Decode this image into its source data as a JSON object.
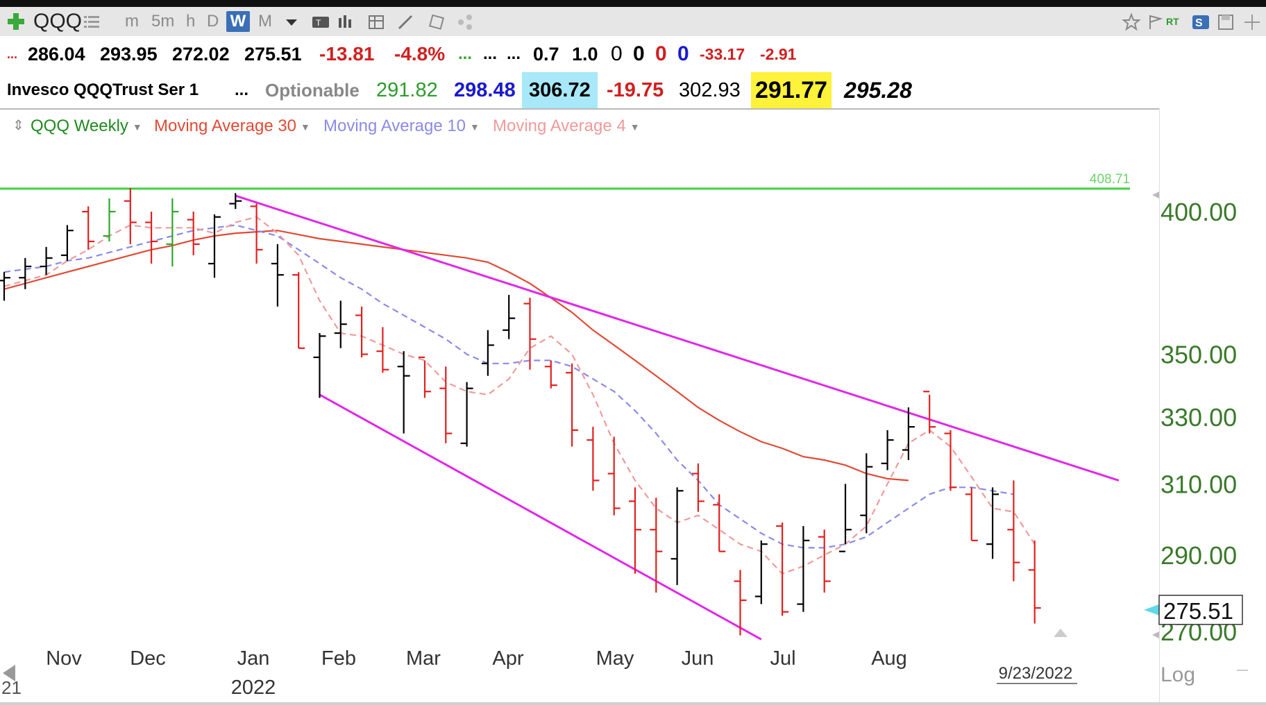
{
  "toolbar": {
    "symbol": "QQQ",
    "intervals": [
      "m",
      "5m",
      "h",
      "D",
      "W",
      "M"
    ],
    "active_interval": "W",
    "rt_label": "RT",
    "icons": [
      "add-symbol-icon",
      "list-icon",
      "dropdown-icon",
      "text-tool-icon",
      "bar-style-icon",
      "indicator-icon",
      "draw-icon",
      "drawing-tools-icon",
      "share-icon",
      "star-icon",
      "flag-icon",
      "s-icon",
      "save-icon",
      "crosshair-icon"
    ]
  },
  "quotes_row1": {
    "dots_left": "...",
    "open": "286.04",
    "high": "293.95",
    "low": "272.02",
    "last": "275.51",
    "change": "-13.81",
    "change_pct": "-4.8%",
    "green_dots": "...",
    "dots_a": "...",
    "dots_b": "...",
    "v1": "0.7",
    "v2": "1.0",
    "z1": "0",
    "z2": "0",
    "z3": "0",
    "z4": "0",
    "red1": "-33.17",
    "red2": "-2.91"
  },
  "quotes_row2": {
    "name": "Invesco QQQTrust Ser 1",
    "dots": "...",
    "optionable": "Optionable",
    "p1": "291.82",
    "p2": "298.48",
    "p3": "306.72",
    "p4": "-19.75",
    "p5": "302.93",
    "p6": "291.77",
    "p7": "295.28"
  },
  "legend": {
    "main": "QQQ Weekly",
    "ma30": "Moving Average 30",
    "ma10": "Moving Average 10",
    "ma4": "Moving Average 4"
  },
  "colors": {
    "up": "#000000",
    "down": "#e0201e",
    "green_bar": "#2ea52e",
    "ma30": "#e04a35",
    "ma10": "#8a8ae8",
    "ma4": "#f09a9a",
    "trendline": "#e028e8",
    "hline": "#3ed03e",
    "axis_text": "#3a7a2a",
    "legend_main": "#1f8a1f"
  },
  "chart_data": {
    "type": "ohlc",
    "x_labels": [
      "Nov",
      "Dec",
      "Jan",
      "Feb",
      "Mar",
      "Apr",
      "May",
      "Jun",
      "Jul",
      "Aug"
    ],
    "year_label": "2022",
    "corner_label": "21",
    "date_label": "9/23/2022",
    "scale_label": "Log",
    "y_ticks": [
      "400.00",
      "350.00",
      "330.00",
      "310.00",
      "290.00",
      "270.00"
    ],
    "last_price_label": "275.51",
    "hline_label": "408.71",
    "hline_value": 408.71,
    "weeks": [
      {
        "o": 375,
        "h": 378,
        "l": 368,
        "c": 376,
        "d": 0
      },
      {
        "o": 376,
        "h": 383,
        "l": 372,
        "c": 380,
        "d": 0
      },
      {
        "o": 380,
        "h": 387,
        "l": 377,
        "c": 383,
        "d": 0
      },
      {
        "o": 384,
        "h": 395,
        "l": 382,
        "c": 393,
        "d": 0
      },
      {
        "o": 400,
        "h": 402,
        "l": 386,
        "c": 389,
        "d": 1
      },
      {
        "o": 391,
        "h": 405,
        "l": 389,
        "c": 400,
        "d": 2
      },
      {
        "o": 404,
        "h": 409,
        "l": 388,
        "c": 396,
        "d": 1
      },
      {
        "o": 396,
        "h": 400,
        "l": 381,
        "c": 389,
        "d": 1
      },
      {
        "o": 388,
        "h": 405,
        "l": 380,
        "c": 400,
        "d": 2
      },
      {
        "o": 397,
        "h": 400,
        "l": 384,
        "c": 388,
        "d": 1
      },
      {
        "o": 381,
        "h": 399,
        "l": 376,
        "c": 398,
        "d": 0
      },
      {
        "o": 403,
        "h": 407,
        "l": 401,
        "c": 404,
        "d": 0
      },
      {
        "o": 402,
        "h": 403,
        "l": 381,
        "c": 386,
        "d": 1
      },
      {
        "o": 381,
        "h": 388,
        "l": 366,
        "c": 377,
        "d": 0
      },
      {
        "o": 377,
        "h": 378,
        "l": 352,
        "c": 352,
        "d": 1
      },
      {
        "o": 349,
        "h": 357,
        "l": 336,
        "c": 356,
        "d": 0
      },
      {
        "o": 357,
        "h": 368,
        "l": 352,
        "c": 360,
        "d": 0
      },
      {
        "o": 363,
        "h": 366,
        "l": 349,
        "c": 350,
        "d": 1
      },
      {
        "o": 351,
        "h": 359,
        "l": 344,
        "c": 345,
        "d": 1
      },
      {
        "o": 346,
        "h": 351,
        "l": 325,
        "c": 343,
        "d": 0
      },
      {
        "o": 349,
        "h": 348,
        "l": 336,
        "c": 338,
        "d": 1
      },
      {
        "o": 339,
        "h": 346,
        "l": 322,
        "c": 325,
        "d": 1
      },
      {
        "o": 322,
        "h": 341,
        "l": 321,
        "c": 339,
        "d": 0
      },
      {
        "o": 347,
        "h": 358,
        "l": 343,
        "c": 353,
        "d": 0
      },
      {
        "o": 358,
        "h": 370,
        "l": 355,
        "c": 362,
        "d": 0
      },
      {
        "o": 367,
        "h": 369,
        "l": 345,
        "c": 355,
        "d": 1
      },
      {
        "o": 346,
        "h": 348,
        "l": 339,
        "c": 340,
        "d": 1
      },
      {
        "o": 344,
        "h": 347,
        "l": 321,
        "c": 326,
        "d": 1
      },
      {
        "o": 323,
        "h": 327,
        "l": 308,
        "c": 311,
        "d": 1
      },
      {
        "o": 313,
        "h": 324,
        "l": 301,
        "c": 303,
        "d": 1
      },
      {
        "o": 305,
        "h": 309,
        "l": 285,
        "c": 297,
        "d": 1
      },
      {
        "o": 297,
        "h": 306,
        "l": 280,
        "c": 291,
        "d": 1
      },
      {
        "o": 289,
        "h": 309,
        "l": 282,
        "c": 308,
        "d": 0
      },
      {
        "o": 313,
        "h": 316,
        "l": 302,
        "c": 305,
        "d": 1
      },
      {
        "o": 304,
        "h": 307,
        "l": 291,
        "c": 291,
        "d": 1
      },
      {
        "o": 283,
        "h": 286,
        "l": 269,
        "c": 278,
        "d": 1
      },
      {
        "o": 279,
        "h": 294,
        "l": 277,
        "c": 293,
        "d": 0
      },
      {
        "o": 298,
        "h": 299,
        "l": 274,
        "c": 275,
        "d": 1
      },
      {
        "o": 277,
        "h": 298,
        "l": 275,
        "c": 294,
        "d": 0
      },
      {
        "o": 295,
        "h": 297,
        "l": 280,
        "c": 283,
        "d": 1
      },
      {
        "o": 291,
        "h": 310,
        "l": 293,
        "c": 297,
        "d": 0
      },
      {
        "o": 301,
        "h": 319,
        "l": 296,
        "c": 315,
        "d": 0
      },
      {
        "o": 316,
        "h": 326,
        "l": 314,
        "c": 323,
        "d": 0
      },
      {
        "o": 320,
        "h": 333,
        "l": 317,
        "c": 327,
        "d": 0
      },
      {
        "o": 338,
        "h": 337,
        "l": 325,
        "c": 327,
        "d": 1
      },
      {
        "o": 325,
        "h": 326,
        "l": 308,
        "c": 309,
        "d": 1
      },
      {
        "o": 307,
        "h": 309,
        "l": 294,
        "c": 294,
        "d": 1
      },
      {
        "o": 293,
        "h": 309,
        "l": 289,
        "c": 307,
        "d": 0
      },
      {
        "o": 297,
        "h": 311,
        "l": 283,
        "c": 288,
        "d": 1
      },
      {
        "o": 286,
        "h": 294,
        "l": 272,
        "c": 276,
        "d": 1
      }
    ],
    "ma30": [
      372,
      374,
      376,
      378,
      380,
      382,
      384,
      386,
      387.5,
      389.5,
      391,
      392,
      392.5,
      393,
      391.5,
      390,
      389,
      388,
      387,
      386,
      385,
      384,
      383,
      381.5,
      378,
      374,
      369,
      364,
      358,
      353,
      348,
      343,
      338,
      333,
      329,
      325.5,
      322.5,
      320.5,
      318,
      317,
      315.5,
      313,
      311.5,
      311
    ],
    "ma30_start": 0,
    "ma10": [
      378,
      379,
      380,
      382,
      383,
      385,
      387,
      389,
      391,
      393,
      394,
      395,
      393,
      391,
      386,
      381,
      376,
      372,
      367,
      363,
      359,
      355,
      350,
      347,
      347,
      348,
      348,
      346,
      342,
      338,
      332,
      325,
      317,
      311,
      304,
      300,
      296,
      293,
      292,
      292,
      293,
      295,
      299,
      303,
      307,
      309,
      309,
      308,
      307
    ],
    "ma10_start": 0,
    "ma4": [
      373,
      375,
      377,
      382,
      386,
      391,
      395,
      394,
      394,
      394,
      392,
      396,
      398,
      392,
      384,
      368,
      357,
      356,
      353,
      350,
      348,
      341,
      338,
      337,
      342,
      352,
      356,
      350,
      337,
      322,
      311,
      303,
      299,
      301,
      297,
      293,
      291,
      285,
      287,
      290,
      293,
      298,
      310,
      322,
      326,
      321,
      312,
      303,
      302,
      293
    ],
    "ma4_start": 0,
    "upper_trendline": {
      "from": {
        "week": 11,
        "value": 406
      },
      "to": {
        "week": 53,
        "value": 311
      }
    },
    "lower_trendline": {
      "from": {
        "week": 15,
        "value": 337
      },
      "to": {
        "week": 36,
        "value": 268
      }
    }
  }
}
